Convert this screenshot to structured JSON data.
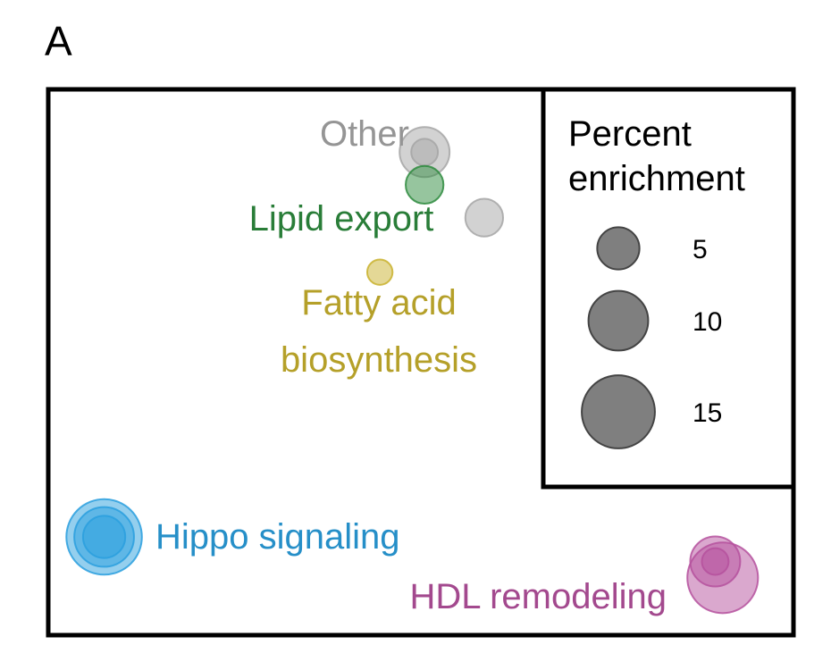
{
  "panel_label": "A",
  "chart_data": {
    "type": "scatter",
    "title": "",
    "xlabel": "",
    "ylabel": "",
    "grid": false,
    "legend": {
      "title_lines": [
        "Percent",
        "enrichment"
      ],
      "placement": "top-right",
      "sizes": [
        {
          "label": "5",
          "value": 5
        },
        {
          "label": "10",
          "value": 10
        },
        {
          "label": "15",
          "value": 15
        }
      ]
    },
    "clusters": [
      {
        "name": "Other",
        "label_lines": [
          "Other"
        ],
        "color": "#a6a6a6",
        "points": [
          {
            "x": 0.505,
            "y": 0.885,
            "size": 7
          },
          {
            "x": 0.505,
            "y": 0.885,
            "size": 2
          },
          {
            "x": 0.585,
            "y": 0.765,
            "size": 4
          }
        ]
      },
      {
        "name": "Lipid export",
        "label_lines": [
          "Lipid export"
        ],
        "color": "#2e8b3e",
        "points": [
          {
            "x": 0.505,
            "y": 0.825,
            "size": 4
          }
        ]
      },
      {
        "name": "Fatty acid biosynthesis",
        "label_lines": [
          "Fatty acid",
          "biosynthesis"
        ],
        "color": "#c9b22e",
        "points": [
          {
            "x": 0.445,
            "y": 0.665,
            "size": 1.8
          }
        ]
      },
      {
        "name": "Hippo signaling",
        "label_lines": [
          "Hippo signaling"
        ],
        "color": "#2a9fde",
        "points": [
          {
            "x": 0.075,
            "y": 0.18,
            "size": 16
          },
          {
            "x": 0.075,
            "y": 0.18,
            "size": 10
          },
          {
            "x": 0.075,
            "y": 0.18,
            "size": 5
          }
        ]
      },
      {
        "name": "HDL remodeling",
        "label_lines": [
          "HDL remodeling"
        ],
        "color": "#b5519e",
        "points": [
          {
            "x": 0.905,
            "y": 0.105,
            "size": 14
          },
          {
            "x": 0.895,
            "y": 0.135,
            "size": 7
          },
          {
            "x": 0.895,
            "y": 0.135,
            "size": 2
          }
        ]
      }
    ]
  }
}
